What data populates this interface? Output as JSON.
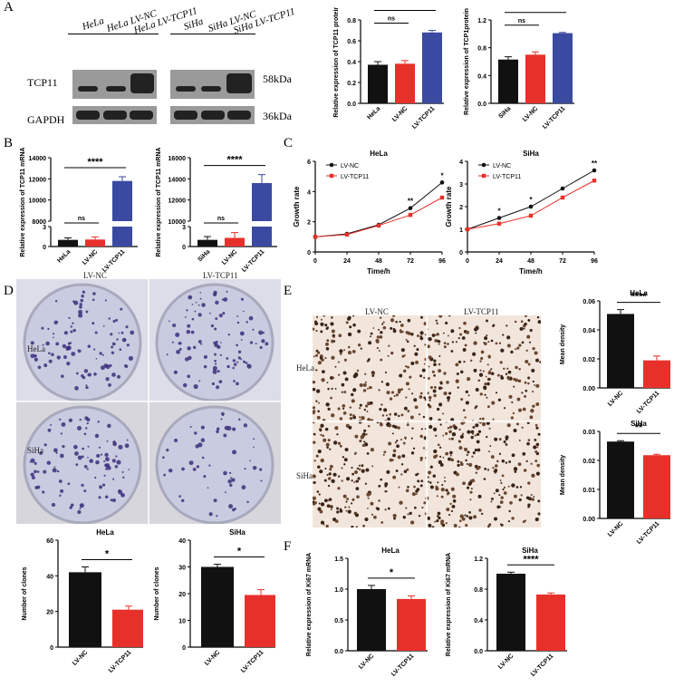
{
  "panel_letters": [
    "A",
    "B",
    "C",
    "D",
    "E",
    "F"
  ],
  "western_blot": {
    "lane_labels": [
      "HeLa",
      "HeLa LV-NC",
      "HeLa LV-TCP11",
      "SiHa",
      "SiHa LV-NC",
      "SiHa LV-TCP11"
    ],
    "row_labels": [
      "TCP11",
      "GAPDH"
    ],
    "kda_labels": [
      "58kDa",
      "36kDa"
    ]
  },
  "colony_photo": {
    "col_labels": [
      "LV-NC",
      "LV-TCP11"
    ],
    "row_labels": [
      "HeLa",
      "SiHa"
    ]
  },
  "ihc_photo": {
    "col_labels": [
      "LV-NC",
      "LV-TCP11"
    ],
    "row_labels": [
      "HeLa",
      "SiHa"
    ]
  },
  "colors": {
    "black": "#111111",
    "red": "#e8302a",
    "blue": "#3a4aa0"
  },
  "chart_data": [
    {
      "id": "A1",
      "type": "bar",
      "categories": [
        "HeLa",
        "LV-NC",
        "LV-TCP11"
      ],
      "values": [
        0.37,
        0.38,
        0.68
      ],
      "errors": [
        0.03,
        0.03,
        0.02
      ],
      "colors": [
        "black",
        "red",
        "blue"
      ],
      "ylabel": "Relative expression of TCP11 protein",
      "ylim": [
        0,
        0.8
      ],
      "yticks": [
        "0.0",
        "0.2",
        "0.4",
        "0.6",
        "0.8"
      ],
      "title": "",
      "sig": [
        {
          "from": 0,
          "to": 1,
          "label": "ns"
        },
        {
          "from": 0,
          "to": 2,
          "label": "***"
        }
      ]
    },
    {
      "id": "A2",
      "type": "bar",
      "categories": [
        "SiHa",
        "LV-NC",
        "LV-TCP11"
      ],
      "values": [
        0.63,
        0.7,
        1.01
      ],
      "errors": [
        0.04,
        0.04,
        0.01
      ],
      "colors": [
        "black",
        "red",
        "blue"
      ],
      "ylabel": "Relative expression of TCP1protein",
      "ylim": [
        0,
        1.2
      ],
      "yticks": [
        "0.0",
        "0.4",
        "0.8",
        "1.2"
      ],
      "title": "",
      "sig": [
        {
          "from": 0,
          "to": 1,
          "label": "ns"
        },
        {
          "from": 0,
          "to": 2,
          "label": "****"
        }
      ]
    },
    {
      "id": "B1",
      "type": "bar",
      "broken": true,
      "categories": [
        "HeLa",
        "LV-NC",
        "LV-TCP11"
      ],
      "values": [
        1,
        1.05,
        11800
      ],
      "errors": [
        0.3,
        0.4,
        400
      ],
      "colors": [
        "black",
        "red",
        "blue"
      ],
      "ylabel": "Relative expression of TCP11 mRNA",
      "lower_range": [
        0,
        3
      ],
      "upper_range": [
        8000,
        14000
      ],
      "lower_ticks": [
        "0",
        "3"
      ],
      "upper_ticks": [
        "8000",
        "10000",
        "12000",
        "14000"
      ],
      "title": "",
      "sig": [
        {
          "from": 0,
          "to": 1,
          "label": "ns"
        },
        {
          "from": 0,
          "to": 2,
          "label": "****"
        }
      ]
    },
    {
      "id": "B2",
      "type": "bar",
      "broken": true,
      "categories": [
        "SiHa",
        "LV-NC",
        "LV-TCP11"
      ],
      "values": [
        1,
        1.3,
        13600
      ],
      "errors": [
        0.5,
        0.8,
        800
      ],
      "colors": [
        "black",
        "red",
        "blue"
      ],
      "ylabel": "Relative expression of TCP11 mRNA",
      "lower_range": [
        0,
        3
      ],
      "upper_range": [
        10000,
        16000
      ],
      "lower_ticks": [
        "0",
        "3"
      ],
      "upper_ticks": [
        "10000",
        "12000",
        "14000",
        "16000"
      ],
      "title": "",
      "sig": [
        {
          "from": 0,
          "to": 1,
          "label": "ns"
        },
        {
          "from": 0,
          "to": 2,
          "label": "****"
        }
      ]
    },
    {
      "id": "C1",
      "type": "line",
      "title": "HeLa",
      "x": [
        0,
        24,
        48,
        72,
        96
      ],
      "xticks": [
        "0",
        "24",
        "48",
        "72",
        "96"
      ],
      "xlabel": "Time/h",
      "ylabel": "Growth rate",
      "ylim": [
        0,
        6
      ],
      "yticks": [
        "0",
        "2",
        "4",
        "6"
      ],
      "series": [
        {
          "name": "LV-NC",
          "color": "black",
          "values": [
            1,
            1.2,
            1.8,
            2.9,
            4.6
          ]
        },
        {
          "name": "LV-TCP11",
          "color": "red",
          "values": [
            1,
            1.15,
            1.75,
            2.45,
            3.6
          ]
        }
      ],
      "stars": [
        {
          "x": 72,
          "label": "**"
        },
        {
          "x": 96,
          "label": "*"
        }
      ]
    },
    {
      "id": "C2",
      "type": "line",
      "title": "SiHa",
      "x": [
        0,
        24,
        48,
        72,
        96
      ],
      "xticks": [
        "0",
        "24",
        "48",
        "72",
        "96"
      ],
      "xlabel": "Time/h",
      "ylabel": "Growth rate",
      "ylim": [
        0,
        4
      ],
      "yticks": [
        "0",
        "1",
        "2",
        "3",
        "4"
      ],
      "series": [
        {
          "name": "LV-NC",
          "color": "black",
          "values": [
            1,
            1.5,
            2.0,
            2.8,
            3.6
          ]
        },
        {
          "name": "LV-TCP11",
          "color": "red",
          "values": [
            1,
            1.25,
            1.6,
            2.4,
            3.15
          ]
        }
      ],
      "stars": [
        {
          "x": 24,
          "label": "*"
        },
        {
          "x": 48,
          "label": "*"
        },
        {
          "x": 96,
          "label": "**"
        }
      ]
    },
    {
      "id": "D1",
      "type": "bar",
      "title": "HeLa",
      "categories": [
        "LV-NC",
        "LV-TCP11"
      ],
      "values": [
        42,
        21
      ],
      "errors": [
        3,
        2
      ],
      "colors": [
        "black",
        "red"
      ],
      "ylabel": "Number of clones",
      "ylim": [
        0,
        60
      ],
      "yticks": [
        "0",
        "20",
        "40",
        "60"
      ],
      "sig": [
        {
          "from": 0,
          "to": 1,
          "label": "*"
        }
      ]
    },
    {
      "id": "D2",
      "type": "bar",
      "title": "SiHa",
      "categories": [
        "LV-NC",
        "LV-TCP11"
      ],
      "values": [
        30,
        19.5
      ],
      "errors": [
        1,
        2
      ],
      "colors": [
        "black",
        "red"
      ],
      "ylabel": "Number of clones",
      "ylim": [
        0,
        40
      ],
      "yticks": [
        "0",
        "10",
        "20",
        "30",
        "40"
      ],
      "sig": [
        {
          "from": 0,
          "to": 1,
          "label": "*"
        }
      ]
    },
    {
      "id": "E1",
      "type": "bar",
      "title": "HeLa",
      "categories": [
        "LV-NC",
        "LV-TCP11"
      ],
      "values": [
        0.051,
        0.019
      ],
      "errors": [
        0.003,
        0.003
      ],
      "colors": [
        "black",
        "red"
      ],
      "ylabel": "Mean density",
      "ylim": [
        0,
        0.06
      ],
      "yticks": [
        "0.00",
        "0.02",
        "0.04",
        "0.06"
      ],
      "sig": [
        {
          "from": 0,
          "to": 1,
          "label": "****"
        }
      ]
    },
    {
      "id": "E2",
      "type": "bar",
      "title": "SiHa",
      "categories": [
        "LV-NC",
        "LV-TCP11"
      ],
      "values": [
        0.0265,
        0.0218
      ],
      "errors": [
        0.0003,
        0.0003
      ],
      "colors": [
        "black",
        "red"
      ],
      "ylabel": "Mean density",
      "ylim": [
        0,
        0.03
      ],
      "yticks": [
        "0.00",
        "0.01",
        "0.02",
        "0.03"
      ],
      "sig": [
        {
          "from": 0,
          "to": 1,
          "label": "**"
        }
      ]
    },
    {
      "id": "F1",
      "type": "bar",
      "title": "HeLa",
      "categories": [
        "LV-NC",
        "LV-TCP11"
      ],
      "values": [
        1.0,
        0.84
      ],
      "errors": [
        0.06,
        0.05
      ],
      "colors": [
        "black",
        "red"
      ],
      "ylabel": "Relative expression of Ki67 mRNA",
      "ylim": [
        0,
        1.5
      ],
      "yticks": [
        "0.0",
        "0.5",
        "1.0",
        "1.5"
      ],
      "sig": [
        {
          "from": 0,
          "to": 1,
          "label": "*"
        }
      ]
    },
    {
      "id": "F2",
      "type": "bar",
      "title": "SiHa",
      "categories": [
        "LV-NC",
        "LV-TCP11"
      ],
      "values": [
        1.0,
        0.73
      ],
      "errors": [
        0.02,
        0.02
      ],
      "colors": [
        "black",
        "red"
      ],
      "ylabel": "Relative expression of Ki67 mRNA",
      "ylim": [
        0,
        1.2
      ],
      "yticks": [
        "0.0",
        "0.4",
        "0.8",
        "1.2"
      ],
      "sig": [
        {
          "from": 0,
          "to": 1,
          "label": "****"
        }
      ]
    }
  ]
}
